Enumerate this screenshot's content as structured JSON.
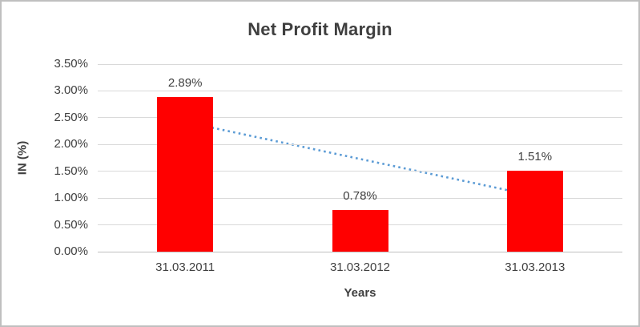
{
  "chart_data": {
    "type": "bar",
    "title": "Net Profit Margin",
    "xlabel": "Years",
    "ylabel": "IN (%)",
    "categories": [
      "31.03.2011",
      "31.03.2012",
      "31.03.2013"
    ],
    "values": [
      2.89,
      0.78,
      1.51
    ],
    "data_labels": [
      "2.89%",
      "0.78%",
      "1.51%"
    ],
    "ylim": [
      0,
      3.5
    ],
    "ytick_step": 0.5,
    "ytick_labels": [
      "0.00%",
      "0.50%",
      "1.00%",
      "1.50%",
      "2.00%",
      "2.50%",
      "3.00%",
      "3.50%"
    ],
    "grid": true,
    "legend": false,
    "colors": {
      "bar": "#FF0000",
      "trendline": "#5B9BD5",
      "gridline": "#D9D9D9",
      "axis_line": "#BFBFBF",
      "text": "#404040",
      "title_text": "#3F3F3F",
      "border": "#BFBFBF"
    },
    "trendline": {
      "style": "dotted",
      "start_value": 2.42,
      "end_value": 1.04,
      "start_category_index": 0,
      "end_category_index": 2
    }
  }
}
